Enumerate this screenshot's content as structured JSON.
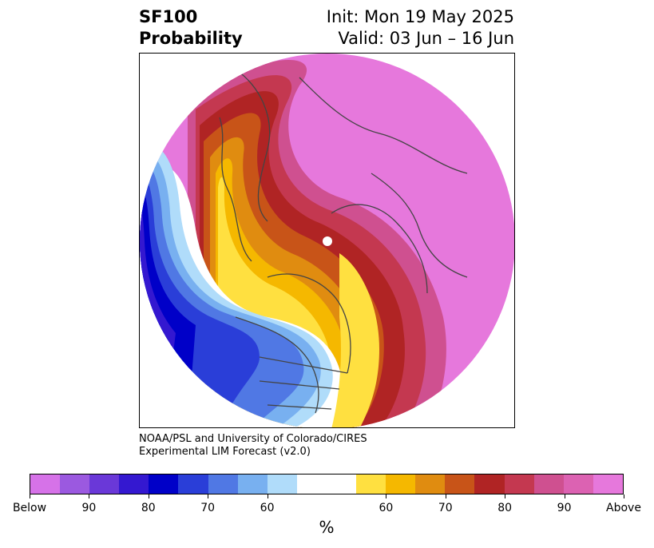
{
  "title": {
    "line1_left": "SF100",
    "line2_left": "Probability",
    "line1_right": "Init: Mon 19 May 2025",
    "line2_right": "Valid: 03 Jun – 16 Jun"
  },
  "credit": {
    "line1": "NOAA/PSL and University of Colorado/CIRES",
    "line2": "Experimental LIM Forecast (v2.0)"
  },
  "colorbar": {
    "colors": [
      "#d672e8",
      "#9b59e0",
      "#6a38d8",
      "#3418d0",
      "#0000c8",
      "#2a3ed8",
      "#5078e4",
      "#78b0f0",
      "#b0dcfa",
      "#ffffff",
      "#ffffff",
      "#ffe040",
      "#f5b800",
      "#e08c10",
      "#c85418",
      "#b02424",
      "#c43850",
      "#cf5090",
      "#dc62b2",
      "#e678dc"
    ],
    "labels": [
      "Below",
      "90",
      "80",
      "70",
      "60",
      "60",
      "70",
      "80",
      "90",
      "Above"
    ],
    "unit": "%"
  }
}
